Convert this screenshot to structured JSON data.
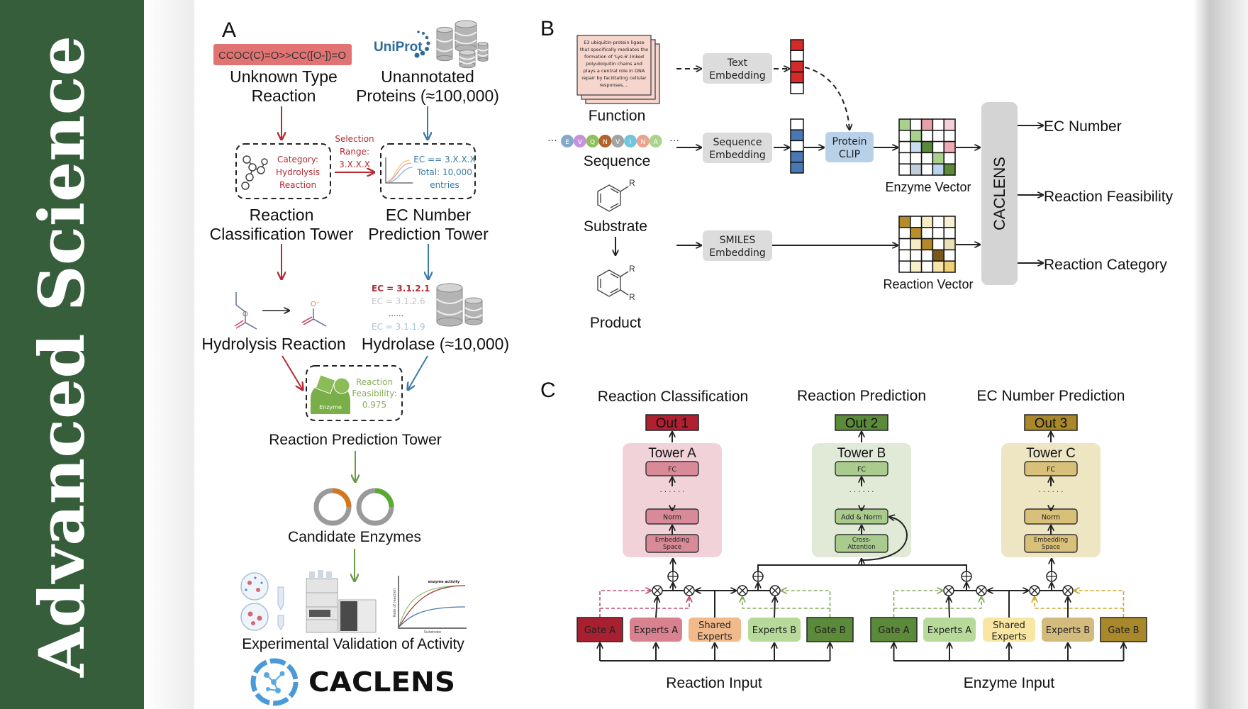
{
  "banner": {
    "text": "Advanced  Science",
    "color": "#375e3b"
  },
  "panel_a": {
    "letter": "A",
    "smiles": "CCOC(C)=O>>CC([O-])=O",
    "uniprot_logo": "UniProt",
    "unknown_reaction": [
      "Unknown Type",
      "Reaction"
    ],
    "unannotated": [
      "Unannotated",
      "Proteins (≈100,000)"
    ],
    "category_box": [
      "Category:",
      "Hydrolysis",
      "Reaction"
    ],
    "selection": [
      "Selection",
      "Range:",
      "3.X.X.X"
    ],
    "ec_box": [
      "EC == 3.X.X.X",
      "Total: 10,000",
      "entries"
    ],
    "classification_tower": [
      "Reaction",
      "Classification Tower"
    ],
    "ec_tower": [
      "EC Number",
      "Prediction Tower"
    ],
    "hydrolysis_reaction": "Hydrolysis Reaction",
    "ec_list": [
      "EC = 3.1.2.1",
      "EC = 3.1.2.6",
      "......",
      "EC = 3.1.1.9"
    ],
    "hydrolase": "Hydrolase (≈10,000)",
    "enzyme_label": "Enzyme",
    "feasibility": [
      "Reaction",
      "Feasibility:",
      "0.975"
    ],
    "prediction_tower": "Reaction Prediction Tower",
    "candidate_enzymes": "Candidate Enzymes",
    "activity_plot": {
      "title": "enzyme activity",
      "ylabel": "Rate of reaction",
      "xlabel": "Substrate"
    },
    "validation": "Experimental Validation of Activity",
    "logo_text": "CACLENS"
  },
  "panel_b": {
    "letter": "B",
    "function_text": [
      "E3 ubiquitin-protein ligase",
      "that specifically mediates the",
      "formation of 'Lys-6'-linked",
      "polyubiquitin chains and",
      "plays a central role in DNA",
      "repair by facilitating cellular",
      "responses...."
    ],
    "function": "Function",
    "sequence_residues": [
      "E",
      "V",
      "Q",
      "N",
      "V",
      "I",
      "N",
      "A"
    ],
    "sequence_colors": [
      "#86a9c6",
      "#c792dc",
      "#8fbf5e",
      "#b3622c",
      "#a3a3a3",
      "#72c6dc",
      "#e9a38e",
      "#abd48c"
    ],
    "sequence": "Sequence",
    "substrate": "Substrate",
    "product": "Product",
    "r_group": "R",
    "text_embedding": [
      "Text",
      "Embedding"
    ],
    "sequence_embedding": [
      "Sequence",
      "Embedding"
    ],
    "smiles_embedding": [
      "SMILES",
      "Embedding"
    ],
    "protein_clip": [
      "Protein",
      "CLIP"
    ],
    "text_vector": [
      "#d42a2a",
      "#ffffff",
      "#d42a2a",
      "#d42a2a",
      "#ffffff"
    ],
    "seq_vector": [
      "#ffffff",
      "#4a78b5",
      "#ffffff",
      "#4a78b5",
      "#4a78b5"
    ],
    "enzyme_vector_label": "Enzyme Vector",
    "reaction_vector_label": "Reaction Vector",
    "enzyme_grid": [
      [
        "#a9d18e",
        "#ffffff",
        "#e8a0a8",
        "#ffffff",
        "#f4d2d8"
      ],
      [
        "#ffffff",
        "#a9d18e",
        "#ffffff",
        "#ffffff",
        "#ffffff"
      ],
      [
        "#ffffff",
        "#c8dcf2",
        "#5a8a3a",
        "#ffffff",
        "#eeaab2"
      ],
      [
        "#ffffff",
        "#ffffff",
        "#ffffff",
        "#a9d18e",
        "#ffffff"
      ],
      [
        "#ffffff",
        "#c2ced9",
        "#ffffff",
        "#bcd4f0",
        "#5a8a3a"
      ]
    ],
    "reaction_grid": [
      [
        "#b58c2a",
        "#ffffff",
        "#f8ecc2",
        "#ffffff",
        "#f8f0d2"
      ],
      [
        "#ffffff",
        "#b88e2a",
        "#ffffff",
        "#ffffff",
        "#ffffff"
      ],
      [
        "#ffffff",
        "#f8ecc2",
        "#b48a28",
        "#ffffff",
        "#ece0b8"
      ],
      [
        "#ffffff",
        "#ffffff",
        "#ffffff",
        "#7a5a18",
        "#ffffff"
      ],
      [
        "#ffffff",
        "#faf0c8",
        "#ffffff",
        "#f8e4a8",
        "#f0d070"
      ]
    ],
    "model": "CACLENS",
    "outputs": [
      "EC Number",
      "Reaction Feasibility",
      "Reaction Category"
    ]
  },
  "panel_c": {
    "letter": "C",
    "towers": [
      {
        "title": "Reaction Classification",
        "out": "Out 1",
        "name": "Tower A",
        "layers": [
          "FC",
          "Norm",
          "Embedding Space"
        ],
        "out_color": "#b02030",
        "bg": "#f1d2d8",
        "layer_color": "#d98a98"
      },
      {
        "title": "Reaction Prediction",
        "out": "Out 2",
        "name": "Tower B",
        "layers": [
          "FC",
          "Add & Norm",
          "Cross-Attention"
        ],
        "out_color": "#5a8a3a",
        "bg": "#e0ead7",
        "layer_color": "#aacb8e"
      },
      {
        "title": "EC Number Prediction",
        "out": "Out 3",
        "name": "Tower C",
        "layers": [
          "FC",
          "Norm",
          "Embedding Space"
        ],
        "out_color": "#a8882a",
        "bg": "#eee5c2",
        "layer_color": "#d8c07a"
      }
    ],
    "dots": "· · · · · ·",
    "reaction_modules": [
      {
        "label": "Gate A",
        "color": "#a82030"
      },
      {
        "label": "Experts A",
        "color": "#d8818f"
      },
      {
        "label": "Shared Experts",
        "color": "#f2b98b"
      },
      {
        "label": "Experts B",
        "color": "#b7da9a"
      },
      {
        "label": "Gate B",
        "color": "#5a8a3a"
      }
    ],
    "enzyme_modules": [
      {
        "label": "Gate A",
        "color": "#5a8a3a"
      },
      {
        "label": "Experts A",
        "color": "#b7da9a"
      },
      {
        "label": "Shared Experts",
        "color": "#f9e6a2"
      },
      {
        "label": "Experts B",
        "color": "#d2bb7c"
      },
      {
        "label": "Gate B",
        "color": "#a8882a"
      }
    ],
    "reaction_input": "Reaction Input",
    "enzyme_input": "Enzyme Input"
  }
}
